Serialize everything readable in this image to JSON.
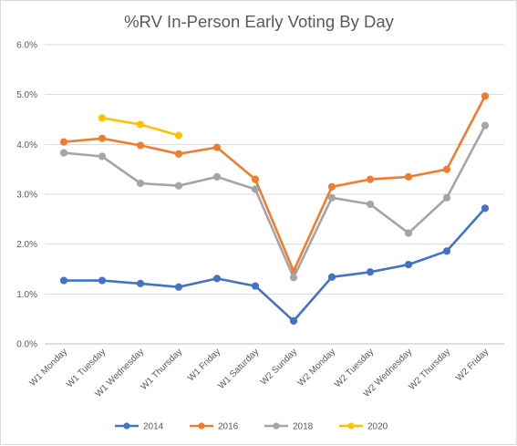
{
  "chart_data": {
    "type": "line",
    "title": "%RV In-Person Early Voting By Day",
    "xlabel": "",
    "ylabel": "",
    "categories": [
      "W1 Monday",
      "W1 Tuesday",
      "W1 Wednesday",
      "W1 Thursday",
      "W1 Friday",
      "W1 Saturday",
      "W2 Sunday",
      "W2 Monday",
      "W2 Tuesday",
      "W2 Wednesday",
      "W2 Thursday",
      "W2 Friday"
    ],
    "yticks": [
      "0.0%",
      "1.0%",
      "2.0%",
      "3.0%",
      "4.0%",
      "5.0%",
      "6.0%"
    ],
    "ylim": [
      0,
      6
    ],
    "grid": "horizontal",
    "legend_position": "bottom",
    "series": [
      {
        "name": "2014",
        "color": "#4472C4",
        "values": [
          1.27,
          1.27,
          1.21,
          1.14,
          1.31,
          1.16,
          0.46,
          1.34,
          1.44,
          1.59,
          1.86,
          2.72
        ]
      },
      {
        "name": "2016",
        "color": "#ED7D31",
        "values": [
          4.05,
          4.12,
          3.98,
          3.81,
          3.94,
          3.3,
          1.46,
          3.15,
          3.3,
          3.35,
          3.5,
          4.97
        ]
      },
      {
        "name": "2018",
        "color": "#A5A5A5",
        "values": [
          3.83,
          3.76,
          3.22,
          3.17,
          3.35,
          3.1,
          1.33,
          2.93,
          2.8,
          2.22,
          2.93,
          4.38
        ]
      },
      {
        "name": "2020",
        "color": "#FFC000",
        "values": [
          null,
          4.53,
          4.4,
          4.18,
          null,
          null,
          null,
          null,
          null,
          null,
          null,
          null
        ]
      }
    ]
  }
}
